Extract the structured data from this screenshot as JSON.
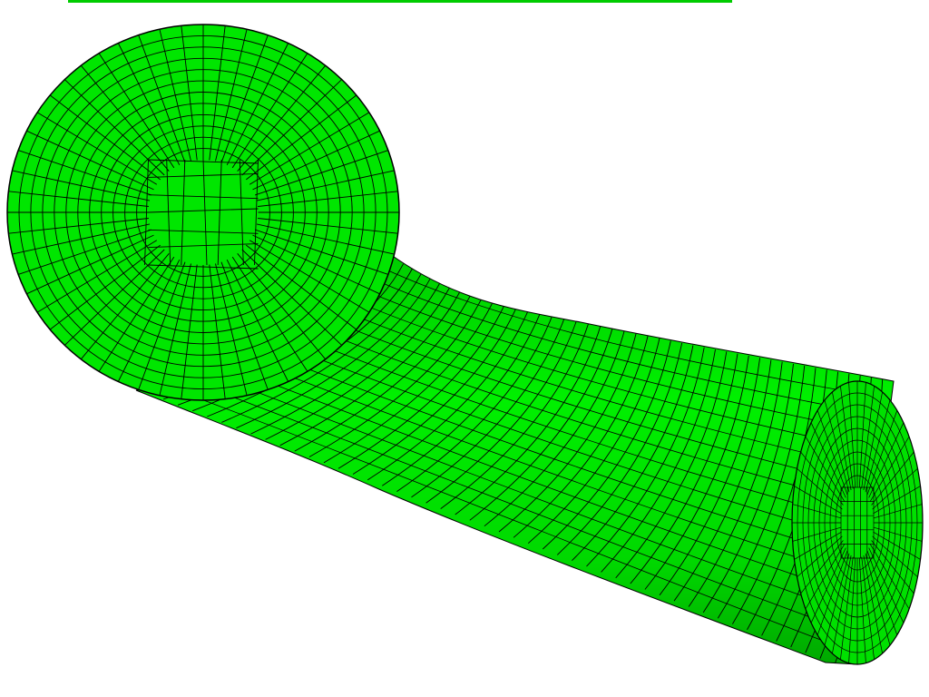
{
  "scene": {
    "subject": "swept-cylinder-hex-mesh-icon",
    "colors": {
      "background": "#ffffff",
      "mesh_fill": "#00e600",
      "mesh_fill_light": "#19ff19",
      "mesh_fill_dark": "#00b300",
      "mesh_edge": "#000000"
    }
  }
}
